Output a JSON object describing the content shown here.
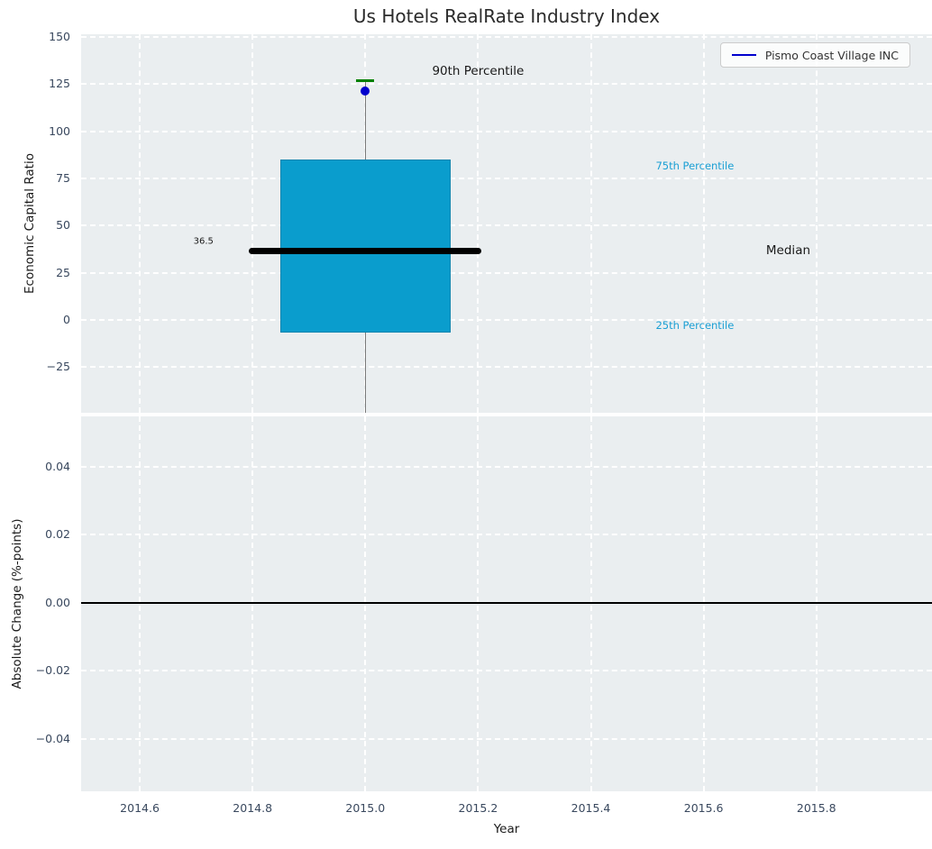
{
  "title": "Us Hotels RealRate Industry Index",
  "legend": {
    "label": "Pismo Coast Village INC",
    "line_color": "#0000cd"
  },
  "colors": {
    "axes_bg": "#eaeef0",
    "grid": "#ffffff",
    "tick_label": "#39485e",
    "text": "#1a1a1a",
    "box_fill": "#0a9dcd",
    "box_edge": "#0b84ae",
    "percentile_label": "#1a9fd4",
    "median_line": "#000000",
    "whisker": "#7a7a7a",
    "cap": "#008000",
    "marker": "#0000cd",
    "zero_line": "#000000"
  },
  "chart_data": [
    {
      "type": "boxplot",
      "title": "Us Hotels RealRate Industry Index",
      "xlabel": "",
      "ylabel": "Economic Capital Ratio",
      "xlim": [
        2014.496,
        2016.005
      ],
      "ylim": [
        -49.2,
        151.4
      ],
      "grid": true,
      "legend_position": "upper right",
      "yticks": {
        "values": [
          150,
          125,
          100,
          75,
          50,
          25,
          0,
          -25
        ],
        "labels": [
          "150",
          "125",
          "100",
          "75",
          "50",
          "25",
          "0",
          "−25"
        ]
      },
      "xticks": {
        "values": [
          2014.6,
          2014.8,
          2015.0,
          2015.2,
          2015.4,
          2015.6,
          2015.8
        ],
        "labels": []
      },
      "box": {
        "x": 2015.0,
        "p90_cap": 127,
        "p75": 85,
        "median": 36.5,
        "p25": -6.5,
        "box_half_width": 0.151,
        "median_half_width": 0.206,
        "cap_half_width": 0.016,
        "whisker_lower_clipped_at": -49.2
      },
      "company_point": {
        "name": "Pismo Coast Village INC",
        "x": 2015.0,
        "y": 121.5
      },
      "annotations": [
        {
          "text": "90th Percentile",
          "x": 2015.2,
          "y": 132,
          "ha": "center",
          "size": 13.5,
          "color": "#1a1a1a"
        },
        {
          "text": "75th Percentile",
          "x": 2015.515,
          "y": 81.7,
          "ha": "left",
          "size": 11.5,
          "color": "#1a9fd4"
        },
        {
          "text": "Median",
          "x": 2015.75,
          "y": 36.8,
          "ha": "center",
          "size": 13.5,
          "color": "#1a1a1a"
        },
        {
          "text": "25th Percentile",
          "x": 2015.515,
          "y": -2.9,
          "ha": "left",
          "size": 11.5,
          "color": "#1a9fd4"
        },
        {
          "text": "36.5",
          "x": 2014.713,
          "y": 41.5,
          "ha": "center",
          "size": 10,
          "color": "#1a1a1a"
        }
      ]
    },
    {
      "type": "line",
      "title": "",
      "xlabel": "Year",
      "ylabel": "Absolute Change (%-points)",
      "xlim": [
        2014.496,
        2016.005
      ],
      "ylim": [
        -0.0554,
        0.0548
      ],
      "grid": true,
      "zero_line": 0.0,
      "series": [],
      "yticks": {
        "values": [
          0.04,
          0.02,
          0,
          -0.02,
          -0.04
        ],
        "labels": [
          "0.04",
          "0.02",
          "0.00",
          "−0.02",
          "−0.04"
        ]
      },
      "xticks": {
        "values": [
          2014.6,
          2014.8,
          2015.0,
          2015.2,
          2015.4,
          2015.6,
          2015.8
        ],
        "labels": [
          "2014.6",
          "2014.8",
          "2015.0",
          "2015.2",
          "2015.4",
          "2015.6",
          "2015.8"
        ]
      }
    }
  ]
}
